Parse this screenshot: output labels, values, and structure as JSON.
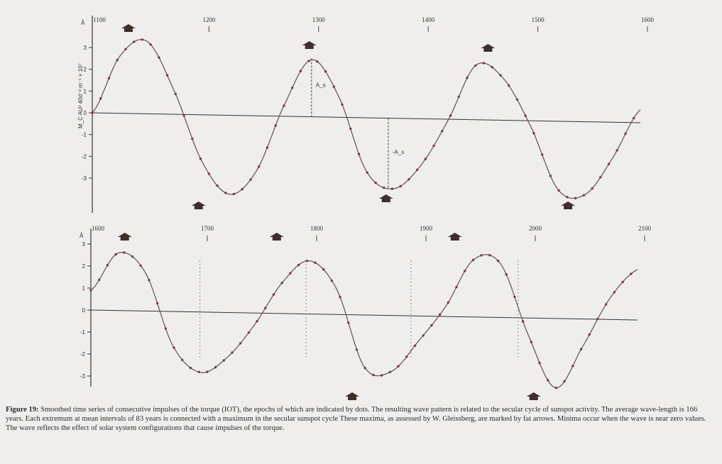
{
  "caption": {
    "label": "Figure 19:",
    "text": "Smoothed time series of consecutive impulses of the torque (IOT), the epochs of which are indicated by dots. The resulting wave pattern is related to the secular cycle of sunspot activity. The average wave-length is 166 years. Each extremum at mean intervals of 83 years is connected with a maximum in the secular sunspot cycle These maxima, as assessed by W. Gleissberg, are marked by fat arrows. Minima occur when the wave is near zero values. The wave reflects the effect of solar system configurations that cause impulses of the torque."
  },
  "colors": {
    "curve": "#6b5a5a",
    "dots": "#7a3a3a",
    "arrow": "#3d2f2a",
    "axis": "#333333"
  },
  "chart_data": [
    {
      "type": "line",
      "panel": "top",
      "title": "",
      "xlabel": "",
      "ylabel": "M_C AU² 40d⁻² m⁻¹ × 10⁷",
      "unit_label": "Å",
      "xlim": [
        1100,
        1600
      ],
      "ylim": [
        -3.8,
        3.5
      ],
      "xticks": [
        1100,
        1200,
        1300,
        1400,
        1500,
        1600
      ],
      "yticks": [
        3,
        2,
        1,
        0,
        -1,
        -2,
        -3
      ],
      "ytick_labels": [
        "3",
        "2",
        "1",
        "0",
        "-1",
        "-2",
        "-3"
      ],
      "annotations": [
        "A_s",
        "-A_s"
      ],
      "series": [
        {
          "x": [
            1100,
            1125,
            1150,
            1175,
            1200,
            1225,
            1250,
            1275,
            1300,
            1325,
            1350,
            1375,
            1400,
            1425,
            1450,
            1475,
            1500,
            1525,
            1550,
            1575,
            1600
          ],
          "y": [
            0,
            2.6,
            3.3,
            1.0,
            -2.2,
            -3.7,
            -2.6,
            0.4,
            2.5,
            0.8,
            -2.6,
            -3.4,
            -2.3,
            -0.2,
            2.3,
            1.7,
            -0.5,
            -3.4,
            -3.6,
            -1.9,
            0.3
          ]
        }
      ],
      "arrows_x": [
        1133,
        1197,
        1298,
        1368,
        1461,
        1534
      ]
    },
    {
      "type": "line",
      "panel": "bottom",
      "title": "",
      "xlabel": "",
      "ylabel": "",
      "unit_label": "Å",
      "xlim": [
        1600,
        2100
      ],
      "ylim": [
        -4.0,
        3.3
      ],
      "xticks": [
        1600,
        1700,
        1800,
        1900,
        2000,
        2100
      ],
      "yticks": [
        3,
        2,
        1,
        0,
        -1,
        -2,
        -3
      ],
      "ytick_labels": [
        "3",
        "2",
        "1",
        "0",
        "-1",
        "-2",
        "-3"
      ],
      "series": [
        {
          "x": [
            1600,
            1625,
            1650,
            1675,
            1700,
            1725,
            1750,
            1775,
            1800,
            1825,
            1850,
            1875,
            1900,
            1925,
            1950,
            1975,
            2000,
            2025,
            2050,
            2075,
            2100
          ],
          "y": [
            0.9,
            2.6,
            1.7,
            -1.6,
            -2.8,
            -2.1,
            -0.6,
            1.3,
            2.3,
            1.0,
            -2.5,
            -2.7,
            -1.3,
            0.3,
            2.4,
            2.2,
            -1.0,
            -3.4,
            -1.5,
            0.7,
            2.0
          ]
        }
      ],
      "arrows_x": [
        1631,
        1770,
        1839,
        1933,
        2005
      ]
    }
  ]
}
